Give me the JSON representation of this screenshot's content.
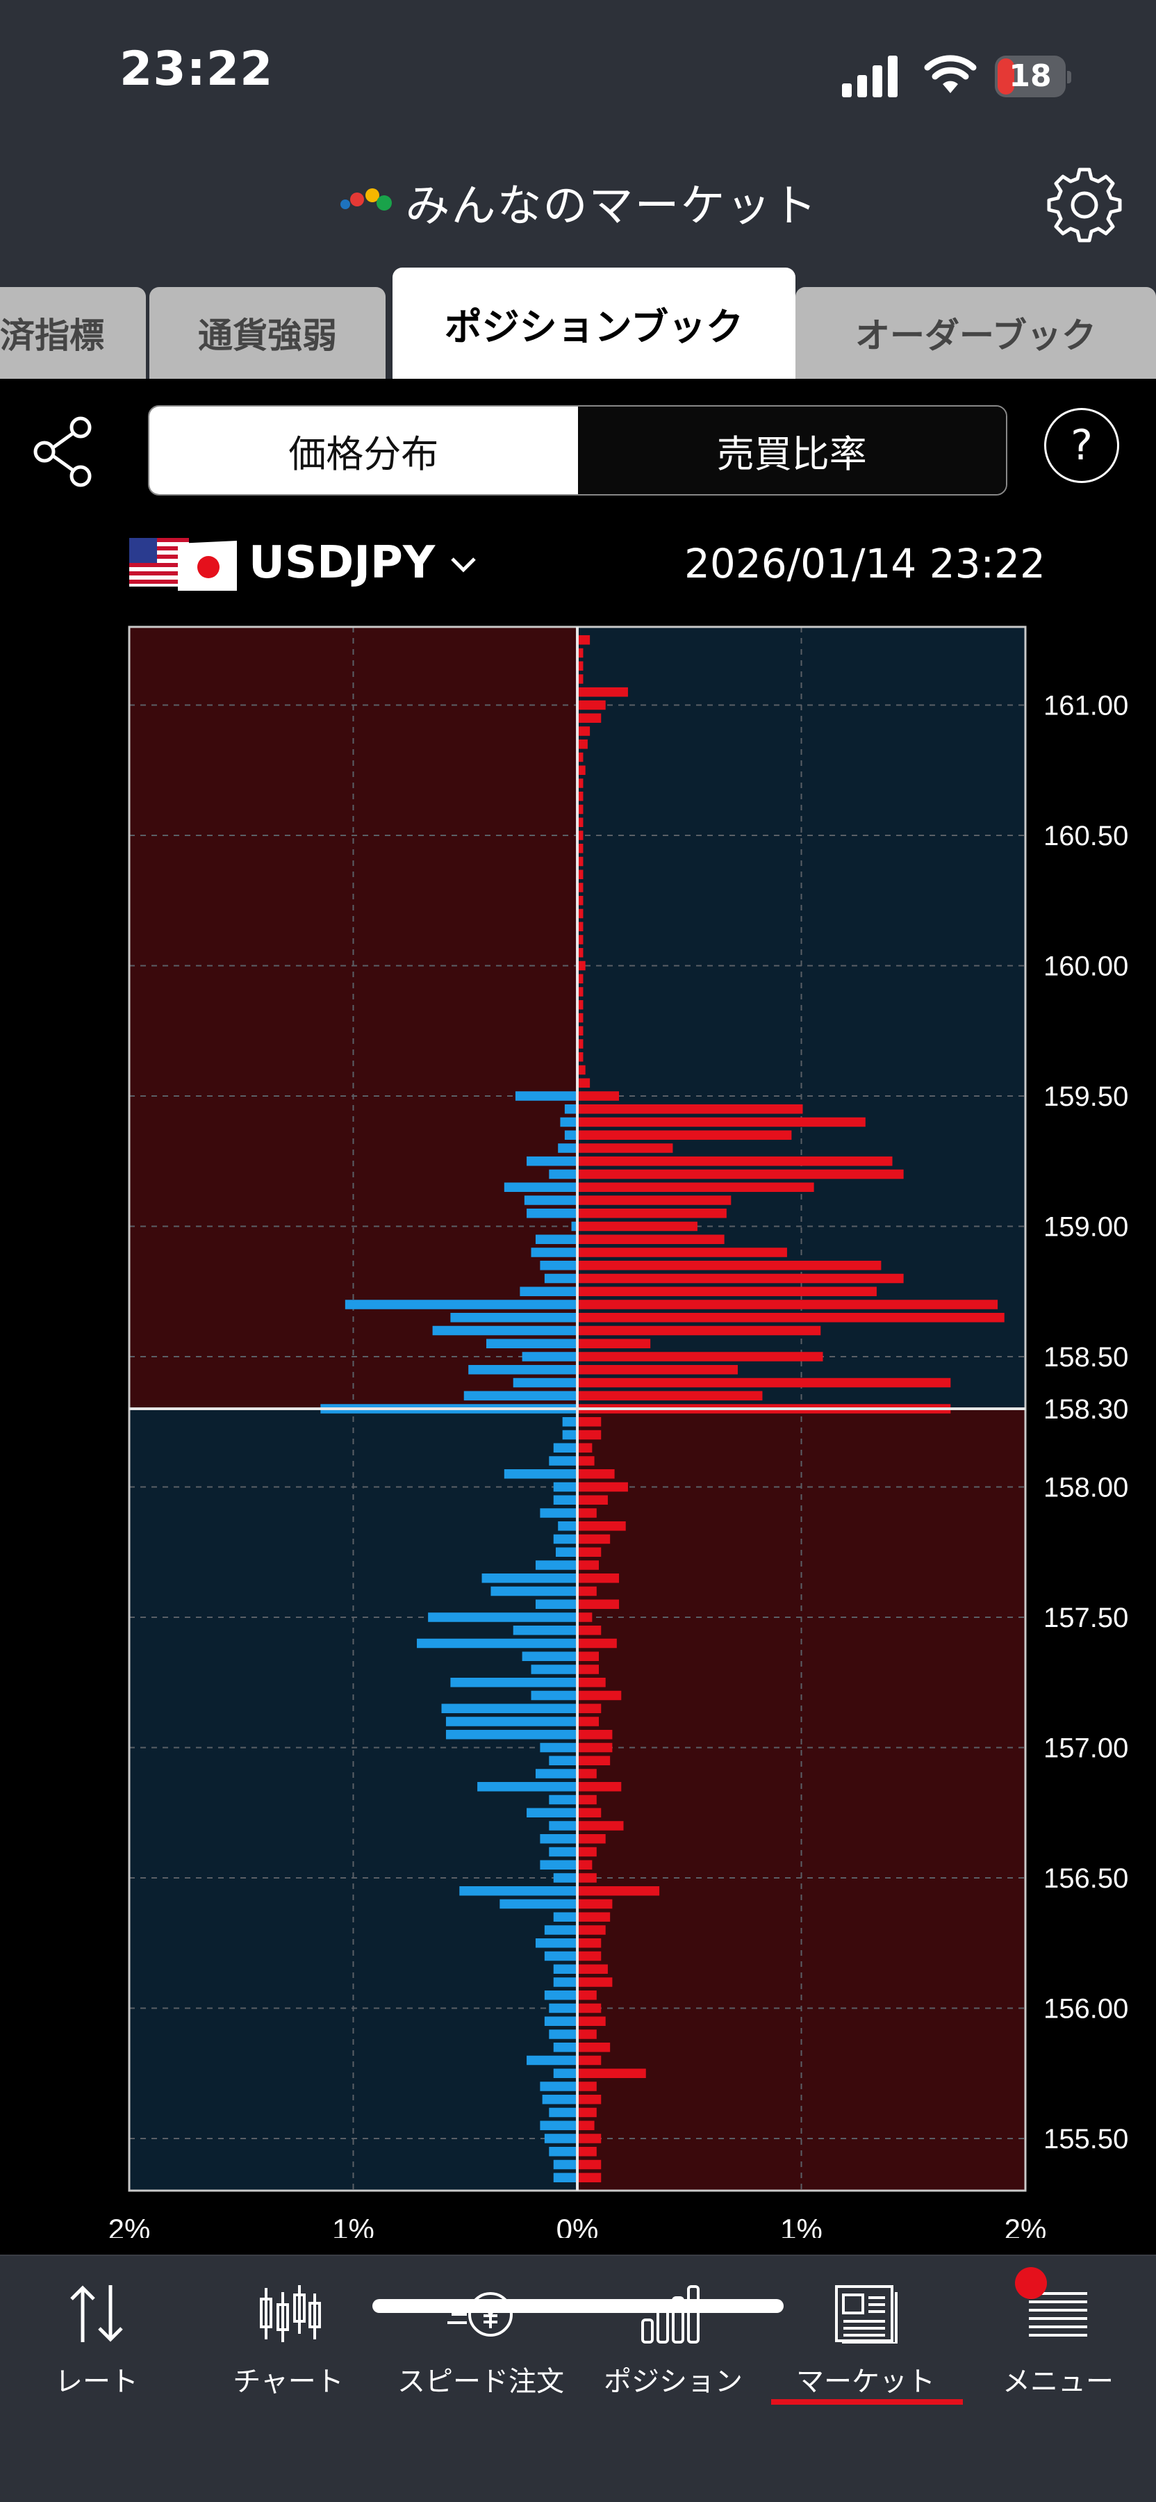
{
  "status": {
    "time": "23:22",
    "battery": "18",
    "colors": {
      "battery_low": "#e53935"
    }
  },
  "header": {
    "title": "みんなのマーケット",
    "settings_icon": "gear-icon"
  },
  "tabs": [
    {
      "label": "済指標",
      "active": false
    },
    {
      "label": "通貨強弱",
      "active": false
    },
    {
      "label": "ポジションブック",
      "active": true
    },
    {
      "label": "オーダーブック",
      "active": false
    }
  ],
  "segment": {
    "options": [
      "価格分布",
      "売買比率"
    ],
    "selected": "価格分布"
  },
  "help_label": "?",
  "instrument": {
    "symbol": "USDJPY",
    "timestamp": "2026/01/14 23:22"
  },
  "colors": {
    "buy": "#e5101c",
    "sell": "#1e9be8",
    "bg_red": "#3a090c",
    "bg_blue": "#0a1f2f"
  },
  "chart_data": {
    "type": "bar",
    "orientation": "horizontal-diverging",
    "current_price": 158.3,
    "current_price_label": "158.30",
    "xlim_pct": [
      -2,
      2
    ],
    "ylim": [
      155.3,
      161.3
    ],
    "x_tick_labels": [
      "2%",
      "1%",
      "0%",
      "1%",
      "2%"
    ],
    "y_tick_labels": [
      "161.00",
      "160.50",
      "160.00",
      "159.50",
      "159.00",
      "158.50",
      "158.00",
      "157.50",
      "157.00",
      "156.50",
      "156.00",
      "155.50"
    ],
    "bin_size": 0.05,
    "series": [
      {
        "name": "buy",
        "points": [
          [
            161.25,
            0.05
          ],
          [
            161.2,
            0.02
          ],
          [
            161.15,
            0.02
          ],
          [
            161.1,
            0.02
          ],
          [
            161.05,
            0.22
          ],
          [
            161.0,
            0.12
          ],
          [
            160.95,
            0.1
          ],
          [
            160.9,
            0.05
          ],
          [
            160.85,
            0.04
          ],
          [
            160.8,
            0.02
          ],
          [
            160.75,
            0.03
          ],
          [
            160.7,
            0.02
          ],
          [
            160.65,
            0.02
          ],
          [
            160.6,
            0.02
          ],
          [
            160.55,
            0.02
          ],
          [
            160.5,
            0.02
          ],
          [
            160.45,
            0.02
          ],
          [
            160.4,
            0.02
          ],
          [
            160.35,
            0.02
          ],
          [
            160.3,
            0.02
          ],
          [
            160.25,
            0.02
          ],
          [
            160.2,
            0.02
          ],
          [
            160.15,
            0.02
          ],
          [
            160.1,
            0.02
          ],
          [
            160.05,
            0.02
          ],
          [
            160.0,
            0.03
          ],
          [
            159.95,
            0.02
          ],
          [
            159.9,
            0.02
          ],
          [
            159.85,
            0.02
          ],
          [
            159.8,
            0.02
          ],
          [
            159.75,
            0.02
          ],
          [
            159.7,
            0.02
          ],
          [
            159.65,
            0.02
          ],
          [
            159.6,
            0.03
          ],
          [
            159.55,
            0.05
          ],
          [
            159.5,
            0.18
          ],
          [
            159.45,
            1.0
          ],
          [
            159.4,
            1.28
          ],
          [
            159.35,
            0.95
          ],
          [
            159.3,
            0.42
          ],
          [
            159.25,
            1.4
          ],
          [
            159.2,
            1.45
          ],
          [
            159.15,
            1.05
          ],
          [
            159.1,
            0.68
          ],
          [
            159.05,
            0.66
          ],
          [
            159.0,
            0.53
          ],
          [
            158.95,
            0.65
          ],
          [
            158.9,
            0.93
          ],
          [
            158.85,
            1.35
          ],
          [
            158.8,
            1.45
          ],
          [
            158.75,
            1.33
          ],
          [
            158.7,
            1.87
          ],
          [
            158.65,
            1.9
          ],
          [
            158.6,
            1.08
          ],
          [
            158.55,
            0.32
          ],
          [
            158.5,
            1.09
          ],
          [
            158.45,
            0.71
          ],
          [
            158.4,
            1.66
          ],
          [
            158.35,
            0.82
          ],
          [
            158.3,
            1.66
          ],
          [
            158.25,
            0.1
          ],
          [
            158.2,
            0.1
          ],
          [
            158.15,
            0.06
          ],
          [
            158.1,
            0.07
          ],
          [
            158.05,
            0.16
          ],
          [
            158.0,
            0.22
          ],
          [
            157.95,
            0.13
          ],
          [
            157.9,
            0.08
          ],
          [
            157.85,
            0.21
          ],
          [
            157.8,
            0.14
          ],
          [
            157.75,
            0.1
          ],
          [
            157.7,
            0.09
          ],
          [
            157.65,
            0.18
          ],
          [
            157.6,
            0.08
          ],
          [
            157.55,
            0.18
          ],
          [
            157.5,
            0.06
          ],
          [
            157.45,
            0.1
          ],
          [
            157.4,
            0.17
          ],
          [
            157.35,
            0.09
          ],
          [
            157.3,
            0.09
          ],
          [
            157.25,
            0.12
          ],
          [
            157.2,
            0.19
          ],
          [
            157.15,
            0.1
          ],
          [
            157.1,
            0.09
          ],
          [
            157.05,
            0.15
          ],
          [
            157.0,
            0.15
          ],
          [
            156.95,
            0.14
          ],
          [
            156.9,
            0.08
          ],
          [
            156.85,
            0.19
          ],
          [
            156.8,
            0.08
          ],
          [
            156.75,
            0.1
          ],
          [
            156.7,
            0.2
          ],
          [
            156.65,
            0.12
          ],
          [
            156.6,
            0.08
          ],
          [
            156.55,
            0.06
          ],
          [
            156.5,
            0.08
          ],
          [
            156.45,
            0.36
          ],
          [
            156.4,
            0.15
          ],
          [
            156.35,
            0.14
          ],
          [
            156.3,
            0.12
          ],
          [
            156.25,
            0.1
          ],
          [
            156.2,
            0.1
          ],
          [
            156.15,
            0.13
          ],
          [
            156.1,
            0.15
          ],
          [
            156.05,
            0.08
          ],
          [
            156.0,
            0.1
          ],
          [
            155.95,
            0.12
          ],
          [
            155.9,
            0.08
          ],
          [
            155.85,
            0.14
          ],
          [
            155.8,
            0.1
          ],
          [
            155.75,
            0.3
          ],
          [
            155.7,
            0.08
          ],
          [
            155.65,
            0.1
          ],
          [
            155.6,
            0.08
          ],
          [
            155.55,
            0.07
          ],
          [
            155.5,
            0.1
          ],
          [
            155.45,
            0.08
          ],
          [
            155.4,
            0.1
          ],
          [
            155.35,
            0.1
          ]
        ]
      },
      {
        "name": "sell",
        "points": [
          [
            159.5,
            0.27
          ],
          [
            159.45,
            0.05
          ],
          [
            159.4,
            0.07
          ],
          [
            159.35,
            0.05
          ],
          [
            159.3,
            0.08
          ],
          [
            159.25,
            0.22
          ],
          [
            159.2,
            0.12
          ],
          [
            159.15,
            0.32
          ],
          [
            159.1,
            0.23
          ],
          [
            159.05,
            0.22
          ],
          [
            159.0,
            0.02
          ],
          [
            158.95,
            0.18
          ],
          [
            158.9,
            0.2
          ],
          [
            158.85,
            0.16
          ],
          [
            158.8,
            0.14
          ],
          [
            158.75,
            0.25
          ],
          [
            158.7,
            1.03
          ],
          [
            158.65,
            0.56
          ],
          [
            158.6,
            0.64
          ],
          [
            158.55,
            0.4
          ],
          [
            158.5,
            0.24
          ],
          [
            158.45,
            0.48
          ],
          [
            158.4,
            0.28
          ],
          [
            158.35,
            0.5
          ],
          [
            158.3,
            1.14
          ],
          [
            158.25,
            0.06
          ],
          [
            158.2,
            0.06
          ],
          [
            158.15,
            0.1
          ],
          [
            158.1,
            0.12
          ],
          [
            158.05,
            0.32
          ],
          [
            158.0,
            0.1
          ],
          [
            157.95,
            0.1
          ],
          [
            157.9,
            0.16
          ],
          [
            157.85,
            0.08
          ],
          [
            157.8,
            0.1
          ],
          [
            157.75,
            0.09
          ],
          [
            157.7,
            0.18
          ],
          [
            157.65,
            0.42
          ],
          [
            157.6,
            0.38
          ],
          [
            157.55,
            0.18
          ],
          [
            157.5,
            0.66
          ],
          [
            157.45,
            0.28
          ],
          [
            157.4,
            0.71
          ],
          [
            157.35,
            0.24
          ],
          [
            157.3,
            0.2
          ],
          [
            157.25,
            0.56
          ],
          [
            157.2,
            0.2
          ],
          [
            157.15,
            0.6
          ],
          [
            157.1,
            0.58
          ],
          [
            157.05,
            0.58
          ],
          [
            157.0,
            0.16
          ],
          [
            156.95,
            0.12
          ],
          [
            156.9,
            0.18
          ],
          [
            156.85,
            0.44
          ],
          [
            156.8,
            0.12
          ],
          [
            156.75,
            0.22
          ],
          [
            156.7,
            0.12
          ],
          [
            156.65,
            0.16
          ],
          [
            156.6,
            0.12
          ],
          [
            156.55,
            0.16
          ],
          [
            156.5,
            0.1
          ],
          [
            156.45,
            0.52
          ],
          [
            156.4,
            0.34
          ],
          [
            156.35,
            0.1
          ],
          [
            156.3,
            0.14
          ],
          [
            156.25,
            0.18
          ],
          [
            156.2,
            0.14
          ],
          [
            156.15,
            0.1
          ],
          [
            156.1,
            0.1
          ],
          [
            156.05,
            0.14
          ],
          [
            156.0,
            0.12
          ],
          [
            155.95,
            0.14
          ],
          [
            155.9,
            0.12
          ],
          [
            155.85,
            0.1
          ],
          [
            155.8,
            0.22
          ],
          [
            155.75,
            0.1
          ],
          [
            155.7,
            0.16
          ],
          [
            155.65,
            0.15
          ],
          [
            155.6,
            0.12
          ],
          [
            155.55,
            0.16
          ],
          [
            155.5,
            0.14
          ],
          [
            155.45,
            0.12
          ],
          [
            155.4,
            0.1
          ],
          [
            155.35,
            0.1
          ]
        ]
      }
    ]
  },
  "nav": {
    "items": [
      {
        "label": "レート",
        "icon": "rate-arrows-icon"
      },
      {
        "label": "チャート",
        "icon": "candlestick-icon"
      },
      {
        "label": "スピード注文",
        "icon": "speed-order-yen-icon"
      },
      {
        "label": "ポジション",
        "icon": "bar-chart-icon"
      },
      {
        "label": "マーケット",
        "icon": "newspaper-icon"
      },
      {
        "label": "メニュー",
        "icon": "list-menu-icon"
      }
    ],
    "active": "マーケット"
  }
}
